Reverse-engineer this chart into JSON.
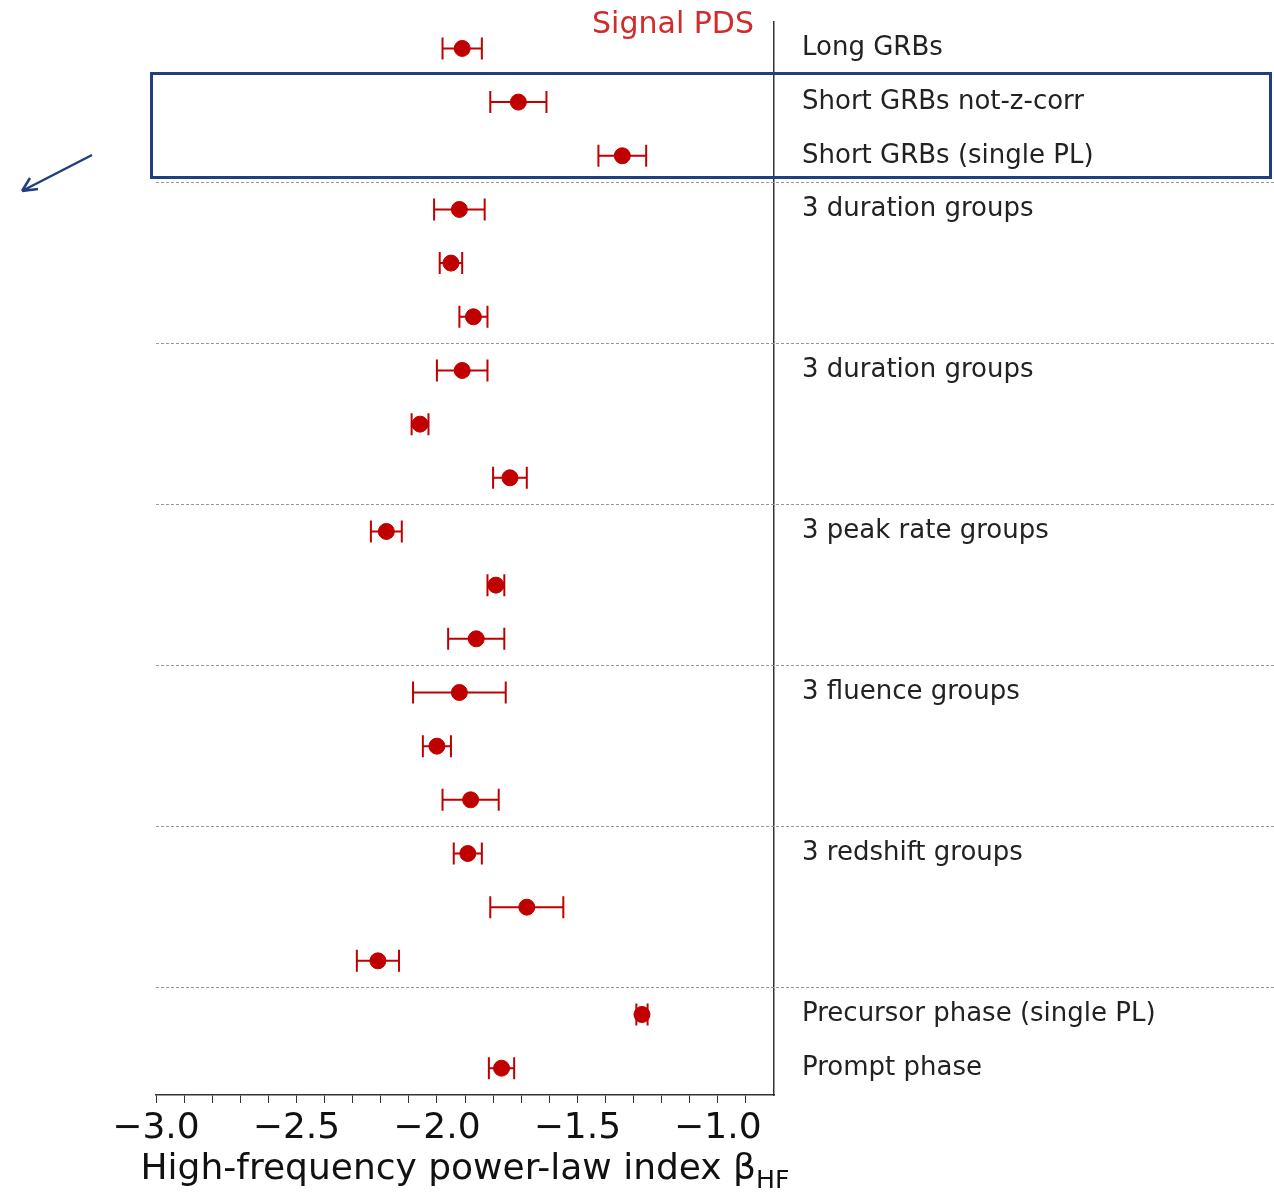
{
  "chart_data": {
    "type": "scatter",
    "orientation": "horizontal",
    "title": "Signal PDS",
    "xlabel": "High-frequency power-law index β$_{HF}$",
    "categories": [
      "Long GRBs",
      "Short GRBs not-z-corr",
      "Short GRBs (single PL)",
      "3 duration groups",
      null,
      null,
      "3 duration groups",
      null,
      null,
      "3 peak rate groups",
      null,
      null,
      "3 fluence groups",
      null,
      null,
      "3 redshift groups",
      null,
      null,
      "Precursor phase (single PL)",
      "Prompt phase"
    ],
    "series": [
      {
        "color": "#c00000",
        "values": [
          -1.91,
          -1.71,
          -1.34,
          -1.92,
          -1.95,
          -1.87,
          -1.91,
          -2.06,
          -1.74,
          -2.18,
          -1.79,
          -1.86,
          -1.92,
          -2.0,
          -1.88,
          -1.89,
          -1.68,
          -2.21,
          -1.27,
          -1.77
        ],
        "errors": [
          0.07,
          0.1,
          0.085,
          0.09,
          0.04,
          0.05,
          0.09,
          0.03,
          0.06,
          0.055,
          0.03,
          0.1,
          0.165,
          0.05,
          0.1,
          0.05,
          0.13,
          0.075,
          0.02,
          0.045
        ]
      }
    ],
    "xlim": [
      -3.0,
      -0.8
    ],
    "xticks": [
      {
        "value": -3.0,
        "label": "−3.0"
      },
      {
        "value": -2.9,
        "label": null
      },
      {
        "value": -2.8,
        "label": null
      },
      {
        "value": -2.7,
        "label": null
      },
      {
        "value": -2.6,
        "label": null
      },
      {
        "value": -2.5,
        "label": "−2.5"
      },
      {
        "value": -2.4,
        "label": null
      },
      {
        "value": -2.3,
        "label": null
      },
      {
        "value": -2.2,
        "label": null
      },
      {
        "value": -2.1,
        "label": null
      },
      {
        "value": -2.0,
        "label": "−2.0"
      },
      {
        "value": -1.9,
        "label": null
      },
      {
        "value": -1.8,
        "label": null
      },
      {
        "value": -1.7,
        "label": null
      },
      {
        "value": -1.6,
        "label": null
      },
      {
        "value": -1.5,
        "label": "−1.5"
      },
      {
        "value": -1.4,
        "label": null
      },
      {
        "value": -1.3,
        "label": null
      },
      {
        "value": -1.2,
        "label": null
      },
      {
        "value": -1.1,
        "label": null
      },
      {
        "value": -1.0,
        "label": "−1.0"
      },
      {
        "value": -0.9,
        "label": null
      }
    ],
    "marker": "circle",
    "grid": false,
    "legend": false
  }
}
